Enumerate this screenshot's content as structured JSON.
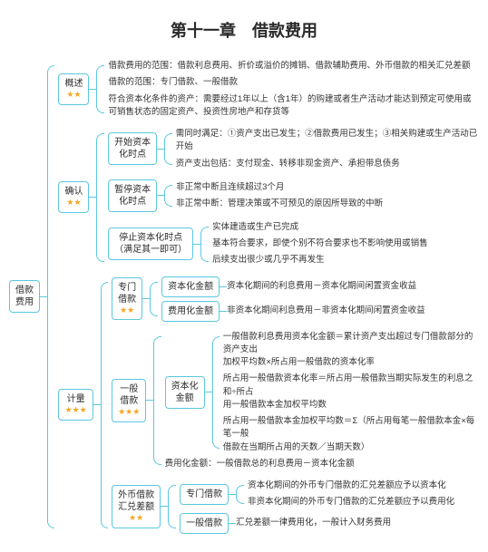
{
  "title": "第十一章　借款费用",
  "styling": {
    "border_color": "#5ac8e0",
    "star_color": "#f5a623",
    "text_color": "#333333",
    "background_color": "#ffffff",
    "title_fontsize": 18,
    "body_fontsize": 9.5,
    "node_border_radius": 4
  },
  "root": {
    "label": "借款\n费用",
    "stars": ""
  },
  "overview": {
    "label": "概述",
    "stars": "★★",
    "items": [
      "借款费用的范围：借款利息费用、折价或溢价的摊销、借款辅助费用、外币借款的相关汇兑差额",
      "借款的范围：专门借款、一般借款",
      "符合资本化条件的资产：需要经过1年以上（含1年）的购建或者生产活动才能达到预定可使用或\n可销售状态的固定资产、投资性房地产和存货等"
    ]
  },
  "recognition": {
    "label": "确认",
    "stars": "★★",
    "start": {
      "label": "开始资本\n化时点",
      "items": [
        "需同时满足：①资产支出已发生；②借款费用已发生；③相关购建或生产活动已开始",
        "资产支出包括：支付现金、转移非现金资产、承担带息债务"
      ]
    },
    "pause": {
      "label": "暂停资本\n化时点",
      "items": [
        "非正常中断且连续超过3个月",
        "非正常中断：管理决策或不可预见的原因所导致的中断"
      ]
    },
    "stop": {
      "label": "停止资本化时点\n（满足其一即可）",
      "items": [
        "实体建造或生产已完成",
        "基本符合要求，即使个别不符合要求也不影响使用或销售",
        "后续支出很少或几乎不再发生"
      ]
    }
  },
  "measurement": {
    "label": "计量",
    "stars": "★★★",
    "special": {
      "label": "专门\n借款",
      "stars": "★★",
      "cap": {
        "label": "资本化金额",
        "text": "资本化期间的利息费用－资本化期间闲置资金收益"
      },
      "exp": {
        "label": "费用化金额",
        "text": "非资本化期间利息费用－非资本化期间闲置资金收益"
      }
    },
    "general": {
      "label": "一般\n借款",
      "stars": "★★★",
      "cap": {
        "label": "资本化\n金额",
        "items": [
          "一般借款利息费用资本化金额＝累计资产支出超过专门借款部分的资产支出\n加权平均数×所占用一般借款的资本化率",
          "所占用一般借款资本化率＝所占用一般借款当期实际发生的利息之和÷所占\n用一般借款本金加权平均数",
          "所占用一般借款本金加权平均数＝Σ（所占用每笔一般借款本金×每笔一般\n借款在当期所占用的天数／当期天数）"
        ]
      },
      "exp": "费用化金额：一般借款总的利息费用－资本化金额"
    },
    "forex": {
      "label": "外币借款\n汇兑差额",
      "stars": "★★",
      "special": {
        "label": "专门借款",
        "items": [
          "资本化期间的外币专门借款的汇兑差额应予以资本化",
          "非资本化期间的外币专门借款的汇兑差额应予以费用化"
        ]
      },
      "general": {
        "label": "一般借款",
        "text": "汇兑差额一律费用化，一般计入财务费用"
      }
    }
  }
}
